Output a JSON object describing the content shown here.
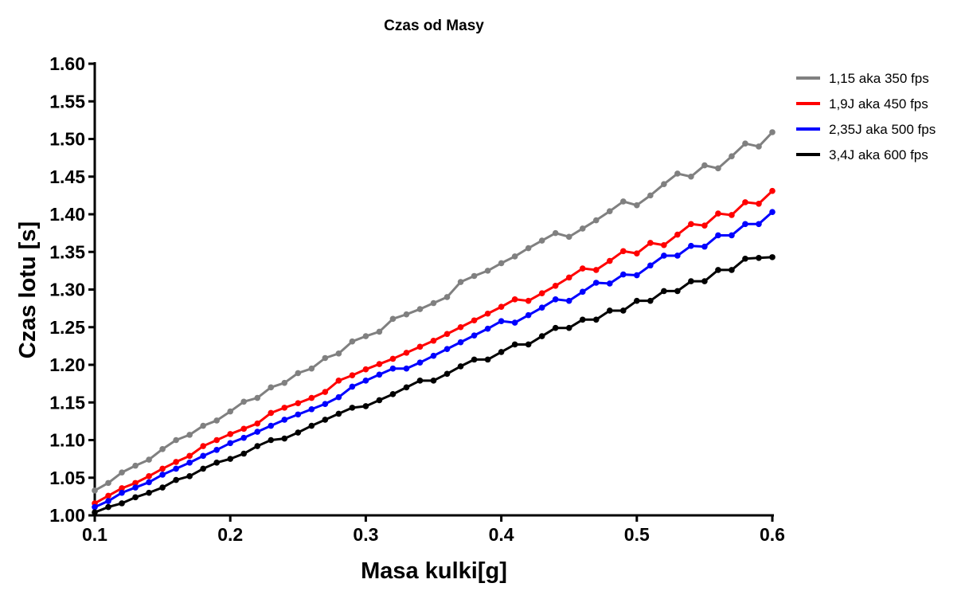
{
  "chart_data": {
    "type": "line",
    "title": "Czas od Masy",
    "xlabel": "Masa kulki[g]",
    "ylabel": "Czas lotu [s]",
    "xlim": [
      0.1,
      0.6
    ],
    "ylim": [
      1.0,
      1.6
    ],
    "xticks": [
      0.1,
      0.2,
      0.3,
      0.4,
      0.5,
      0.6
    ],
    "xtick_labels": [
      "0.1",
      "0.2",
      "0.3",
      "0.4",
      "0.5",
      "0.6"
    ],
    "yticks": [
      1.0,
      1.05,
      1.1,
      1.15,
      1.2,
      1.25,
      1.3,
      1.35,
      1.4,
      1.45,
      1.5,
      1.55,
      1.6
    ],
    "ytick_labels": [
      "1.00",
      "1.05",
      "1.10",
      "1.15",
      "1.20",
      "1.25",
      "1.30",
      "1.35",
      "1.40",
      "1.45",
      "1.50",
      "1.55",
      "1.60"
    ],
    "grid": false,
    "legend_position": "top-right",
    "x": [
      0.1,
      0.11,
      0.12,
      0.13,
      0.14,
      0.15,
      0.16,
      0.17,
      0.18,
      0.19,
      0.2,
      0.21,
      0.22,
      0.23,
      0.24,
      0.25,
      0.26,
      0.27,
      0.28,
      0.29,
      0.3,
      0.31,
      0.32,
      0.33,
      0.34,
      0.35,
      0.36,
      0.37,
      0.38,
      0.39,
      0.4,
      0.41,
      0.42,
      0.43,
      0.44,
      0.45,
      0.46,
      0.47,
      0.48,
      0.49,
      0.5,
      0.51,
      0.52,
      0.53,
      0.54,
      0.55,
      0.56,
      0.57,
      0.58,
      0.59,
      0.6
    ],
    "series": [
      {
        "name": "1,15 aka 350 fps",
        "color": "#808080",
        "values": [
          1.033,
          1.043,
          1.057,
          1.066,
          1.074,
          1.088,
          1.1,
          1.107,
          1.119,
          1.126,
          1.138,
          1.151,
          1.156,
          1.17,
          1.176,
          1.189,
          1.195,
          1.209,
          1.215,
          1.231,
          1.238,
          1.244,
          1.261,
          1.267,
          1.274,
          1.282,
          1.29,
          1.31,
          1.318,
          1.325,
          1.335,
          1.344,
          1.355,
          1.365,
          1.375,
          1.37,
          1.381,
          1.392,
          1.404,
          1.417,
          1.412,
          1.425,
          1.44,
          1.454,
          1.45,
          1.465,
          1.461,
          1.477,
          1.494,
          1.49,
          1.509
        ]
      },
      {
        "name": "1,9J aka 450 fps",
        "color": "#ff0000",
        "values": [
          1.016,
          1.026,
          1.036,
          1.043,
          1.052,
          1.062,
          1.071,
          1.079,
          1.092,
          1.1,
          1.108,
          1.115,
          1.122,
          1.136,
          1.143,
          1.149,
          1.156,
          1.164,
          1.179,
          1.186,
          1.194,
          1.201,
          1.208,
          1.216,
          1.224,
          1.232,
          1.241,
          1.25,
          1.259,
          1.268,
          1.277,
          1.287,
          1.285,
          1.295,
          1.305,
          1.316,
          1.328,
          1.326,
          1.338,
          1.351,
          1.348,
          1.362,
          1.359,
          1.373,
          1.387,
          1.385,
          1.401,
          1.399,
          1.416,
          1.414,
          1.431
        ]
      },
      {
        "name": "2,35J aka 500 fps",
        "color": "#0000ff",
        "values": [
          1.011,
          1.019,
          1.03,
          1.037,
          1.044,
          1.054,
          1.062,
          1.07,
          1.079,
          1.087,
          1.096,
          1.103,
          1.111,
          1.119,
          1.127,
          1.134,
          1.141,
          1.148,
          1.157,
          1.171,
          1.179,
          1.187,
          1.195,
          1.195,
          1.203,
          1.212,
          1.221,
          1.23,
          1.239,
          1.248,
          1.258,
          1.256,
          1.266,
          1.276,
          1.287,
          1.285,
          1.297,
          1.309,
          1.308,
          1.32,
          1.319,
          1.332,
          1.345,
          1.345,
          1.358,
          1.357,
          1.372,
          1.372,
          1.387,
          1.387,
          1.403
        ]
      },
      {
        "name": "3,4J aka 600 fps",
        "color": "#000000",
        "values": [
          1.004,
          1.011,
          1.016,
          1.024,
          1.03,
          1.037,
          1.047,
          1.052,
          1.062,
          1.07,
          1.075,
          1.082,
          1.092,
          1.1,
          1.102,
          1.11,
          1.119,
          1.127,
          1.135,
          1.143,
          1.145,
          1.153,
          1.161,
          1.17,
          1.179,
          1.179,
          1.188,
          1.198,
          1.207,
          1.207,
          1.217,
          1.227,
          1.227,
          1.238,
          1.249,
          1.249,
          1.26,
          1.26,
          1.272,
          1.272,
          1.285,
          1.285,
          1.298,
          1.298,
          1.311,
          1.311,
          1.326,
          1.326,
          1.341,
          1.342,
          1.343
        ]
      }
    ]
  }
}
